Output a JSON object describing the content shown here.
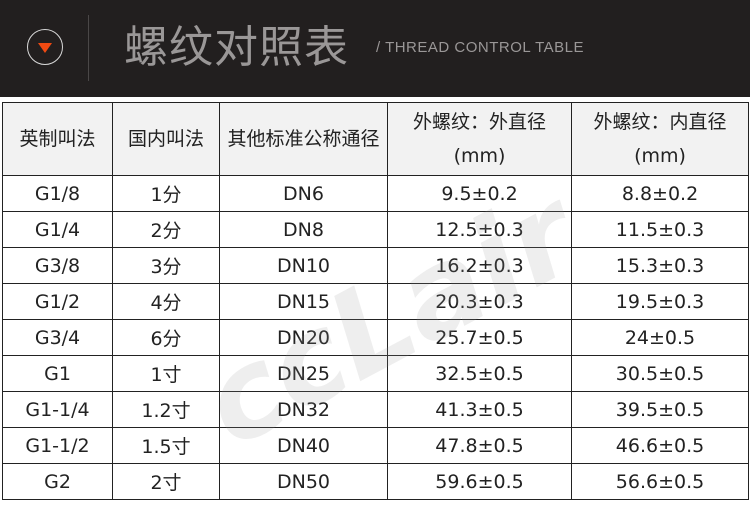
{
  "header": {
    "title": "螺纹对照表",
    "subtitle": "/ THREAD CONTROL TABLE",
    "icon": "chevron-down-circle-icon",
    "accent": "#f04a12",
    "background": "#221f1f"
  },
  "watermark": "ccLair",
  "table": {
    "headers": [
      "英制叫法",
      "国内叫法",
      "其他标准公称通径",
      "外螺纹：外直径(mm)",
      "外螺纹：内直径(mm)"
    ],
    "rows": [
      [
        "G1/8",
        "1分",
        "DN6",
        "9.5±0.2",
        "8.8±0.2"
      ],
      [
        "G1/4",
        "2分",
        "DN8",
        "12.5±0.3",
        "11.5±0.3"
      ],
      [
        "G3/8",
        "3分",
        "DN10",
        "16.2±0.3",
        "15.3±0.3"
      ],
      [
        "G1/2",
        "4分",
        "DN15",
        "20.3±0.3",
        "19.5±0.3"
      ],
      [
        "G3/4",
        "6分",
        "DN20",
        "25.7±0.5",
        "24±0.5"
      ],
      [
        "G1",
        "1寸",
        "DN25",
        "32.5±0.5",
        "30.5±0.5"
      ],
      [
        "G1-1/4",
        "1.2寸",
        "DN32",
        "41.3±0.5",
        "39.5±0.5"
      ],
      [
        "G1-1/2",
        "1.5寸",
        "DN40",
        "47.8±0.5",
        "46.6±0.5"
      ],
      [
        "G2",
        "2寸",
        "DN50",
        "59.6±0.5",
        "56.6±0.5"
      ]
    ]
  }
}
